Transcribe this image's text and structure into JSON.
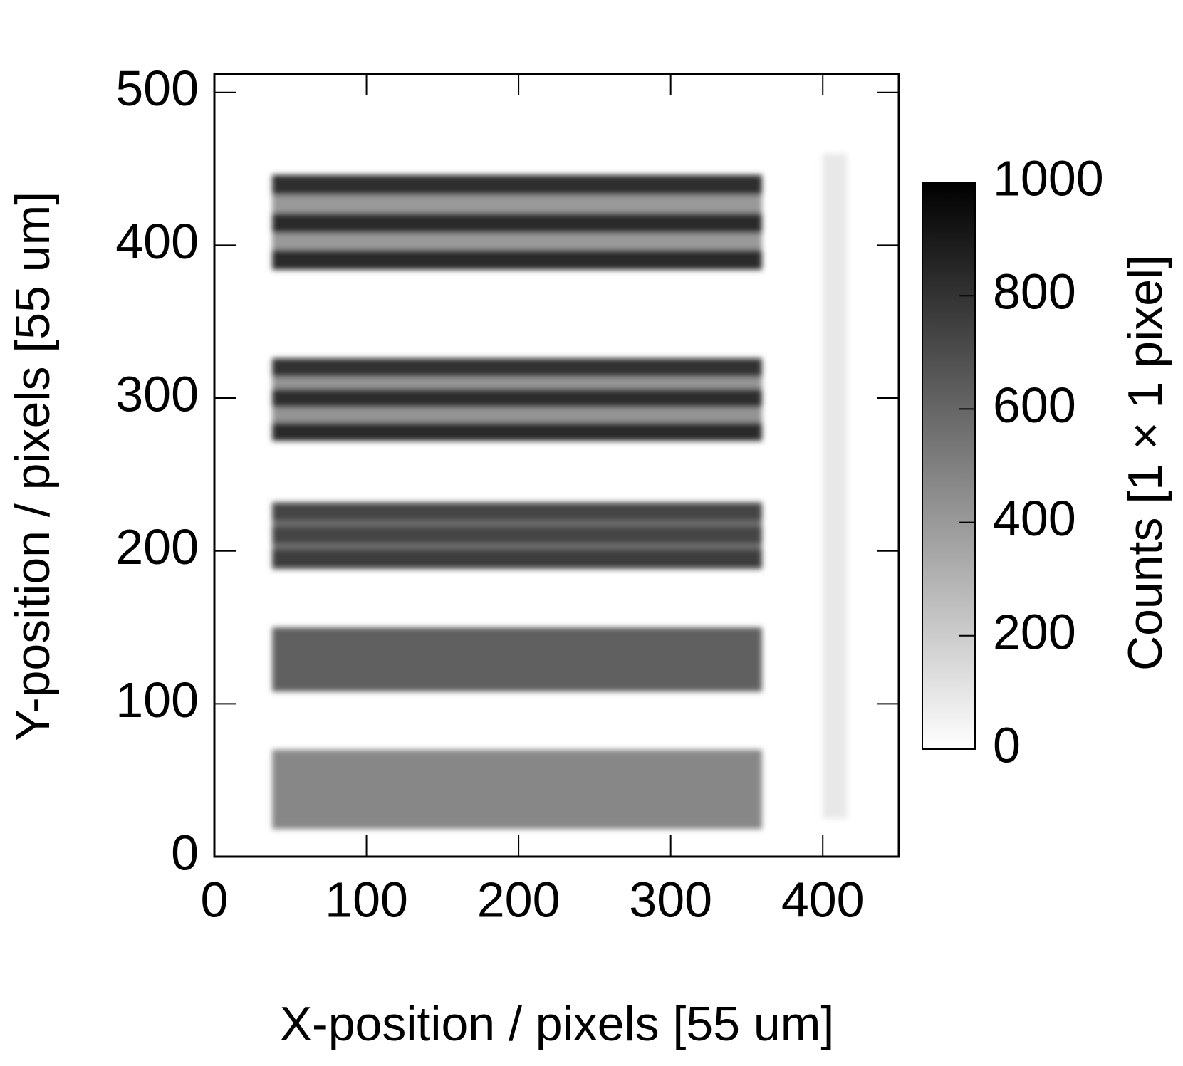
{
  "chart_data": {
    "type": "heatmap",
    "xlabel": "X-position / pixels [55 um]",
    "ylabel": "Y-position / pixels [55 um]",
    "colorbar_label": "Counts [1 × 1 pixel]",
    "xlim": [
      0,
      450
    ],
    "ylim": [
      0,
      512
    ],
    "xticks": [
      0,
      100,
      200,
      300,
      400
    ],
    "yticks": [
      0,
      100,
      200,
      300,
      400,
      500
    ],
    "zlim": [
      0,
      1000
    ],
    "zticks": [
      0,
      200,
      400,
      600,
      800,
      1000
    ],
    "colorscale": [
      "#ffffff",
      "#000000"
    ],
    "cells": [
      {
        "x": [
          38,
          360
        ],
        "y": [
          18,
          70
        ],
        "value": 470
      },
      {
        "x": [
          38,
          360
        ],
        "y": [
          108,
          150
        ],
        "value": 620
      },
      {
        "x": [
          38,
          360
        ],
        "y": [
          188,
          232
        ],
        "value": 560
      },
      {
        "x": [
          38,
          360
        ],
        "y": [
          189,
          201
        ],
        "value": 760
      },
      {
        "x": [
          38,
          360
        ],
        "y": [
          205,
          216
        ],
        "value": 730
      },
      {
        "x": [
          38,
          360
        ],
        "y": [
          220,
          231
        ],
        "value": 730
      },
      {
        "x": [
          38,
          360
        ],
        "y": [
          272,
          326
        ],
        "value": 420
      },
      {
        "x": [
          38,
          360
        ],
        "y": [
          272,
          284
        ],
        "value": 830
      },
      {
        "x": [
          38,
          360
        ],
        "y": [
          294,
          306
        ],
        "value": 820
      },
      {
        "x": [
          38,
          360
        ],
        "y": [
          314,
          326
        ],
        "value": 800
      },
      {
        "x": [
          38,
          360
        ],
        "y": [
          384,
          446
        ],
        "value": 400
      },
      {
        "x": [
          38,
          360
        ],
        "y": [
          384,
          397
        ],
        "value": 840
      },
      {
        "x": [
          38,
          360
        ],
        "y": [
          408,
          421
        ],
        "value": 840
      },
      {
        "x": [
          38,
          360
        ],
        "y": [
          433,
          446
        ],
        "value": 820
      },
      {
        "x": [
          400,
          416
        ],
        "y": [
          25,
          460
        ],
        "value": 90
      }
    ]
  }
}
